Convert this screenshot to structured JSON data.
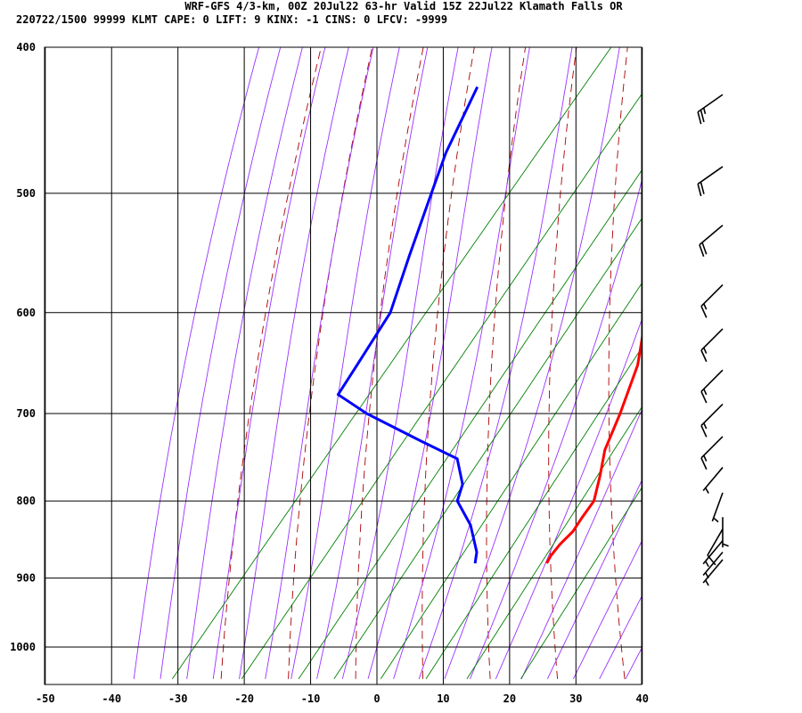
{
  "header": {
    "line1": "WRF-GFS 4/3-km, 00Z 20Jul22 63-hr Valid 15Z 22Jul22 Klamath Falls OR",
    "line2": "220722/1500 99999  KLMT    CAPE:     0 LIFT:     9 KINX:    -1 CINS:     0 LFCV: -9999"
  },
  "colors": {
    "temperature": "#ff0000",
    "dewpoint": "#0000ff",
    "dry_adiabat": "#aa0000",
    "moist_adiabat": "#9b30ff",
    "mixing_ratio": "#008000",
    "grid": "#000000",
    "wind_barb": "#000000"
  },
  "chart_data": {
    "type": "skew-t log-p sounding",
    "x_ticks": [
      -50,
      -40,
      -30,
      -20,
      -10,
      0,
      10,
      20,
      30,
      40
    ],
    "p_ticks": [
      400,
      500,
      600,
      700,
      800,
      900,
      1000
    ],
    "xlim": [
      -50,
      40
    ],
    "plim": [
      400,
      1050
    ],
    "temperature": [
      {
        "p": 880,
        "t": 15.5
      },
      {
        "p": 870,
        "t": 15.2
      },
      {
        "p": 855,
        "t": 15.2
      },
      {
        "p": 838,
        "t": 15.6
      },
      {
        "p": 820,
        "t": 15.3
      },
      {
        "p": 800,
        "t": 15.1
      },
      {
        "p": 770,
        "t": 13.0
      },
      {
        "p": 740,
        "t": 10.6
      },
      {
        "p": 700,
        "t": 8.5
      },
      {
        "p": 650,
        "t": 5.3
      },
      {
        "p": 600,
        "t": 0.3
      },
      {
        "p": 550,
        "t": -4.6
      },
      {
        "p": 500,
        "t": -10.0
      },
      {
        "p": 450,
        "t": -16.6
      },
      {
        "p": 425,
        "t": -20.5
      }
    ],
    "dewpoint": [
      {
        "p": 880,
        "t": 4.7
      },
      {
        "p": 865,
        "t": 3.6
      },
      {
        "p": 830,
        "t": -0.6
      },
      {
        "p": 800,
        "t": -5.5
      },
      {
        "p": 780,
        "t": -6.7
      },
      {
        "p": 750,
        "t": -10.6
      },
      {
        "p": 730,
        "t": -18.2
      },
      {
        "p": 700,
        "t": -29.7
      },
      {
        "p": 680,
        "t": -36.3
      },
      {
        "p": 650,
        "t": -37.0
      },
      {
        "p": 600,
        "t": -38.3
      },
      {
        "p": 550,
        "t": -42.3
      },
      {
        "p": 500,
        "t": -46.5
      },
      {
        "p": 470,
        "t": -49.2
      },
      {
        "p": 425,
        "t": -52.4
      }
    ],
    "wind_barbs": [
      {
        "p": 430,
        "dir": 235,
        "speed": 25
      },
      {
        "p": 480,
        "dir": 235,
        "speed": 20
      },
      {
        "p": 525,
        "dir": 230,
        "speed": 20
      },
      {
        "p": 575,
        "dir": 225,
        "speed": 15
      },
      {
        "p": 615,
        "dir": 225,
        "speed": 15
      },
      {
        "p": 655,
        "dir": 225,
        "speed": 15
      },
      {
        "p": 690,
        "dir": 225,
        "speed": 15
      },
      {
        "p": 725,
        "dir": 225,
        "speed": 15
      },
      {
        "p": 760,
        "dir": 220,
        "speed": 5
      },
      {
        "p": 790,
        "dir": 200,
        "speed": 5
      },
      {
        "p": 820,
        "dir": 180,
        "speed": 5
      },
      {
        "p": 835,
        "dir": 210,
        "speed": 10
      },
      {
        "p": 850,
        "dir": 220,
        "speed": 5
      },
      {
        "p": 865,
        "dir": 220,
        "speed": 5
      },
      {
        "p": 875,
        "dir": 220,
        "speed": 5
      }
    ]
  }
}
